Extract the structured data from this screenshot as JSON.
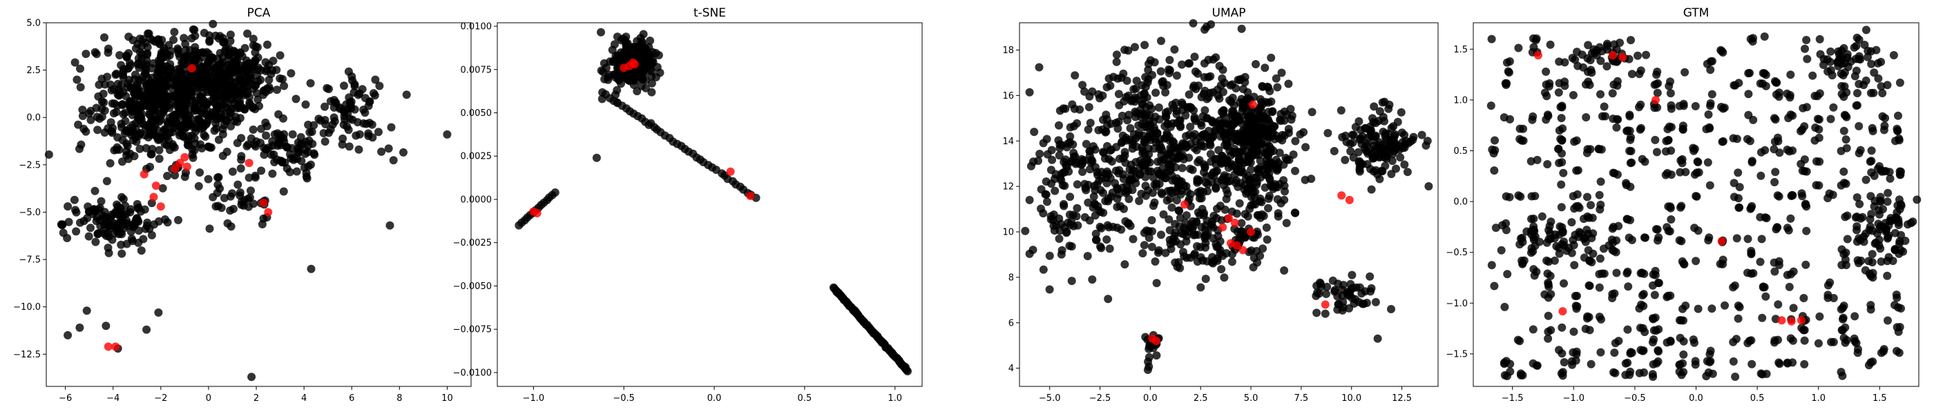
{
  "chart_data": [
    {
      "type": "scatter",
      "title": "PCA",
      "xlim": [
        -6.8,
        11.0
      ],
      "ylim": [
        -14.2,
        5.0
      ],
      "xticks": [
        -6,
        -4,
        -2,
        0,
        2,
        4,
        6,
        8,
        10
      ],
      "yticks": [
        5.0,
        2.5,
        0.0,
        -2.5,
        -5.0,
        -7.5,
        -10.0,
        -12.5
      ],
      "xtick_labels": [
        "−6",
        "−4",
        "−2",
        "0",
        "2",
        "4",
        "6",
        "8",
        "10"
      ],
      "ytick_labels": [
        "5.0",
        "2.5",
        "0.0",
        "−2.5",
        "−5.0",
        "−7.5",
        "−10.0",
        "−12.5"
      ],
      "grid": false,
      "point_color": "#000000",
      "highlight_color": "#ff0000",
      "clusters": [
        {
          "cx": -1.8,
          "cy": 1.0,
          "sx": 1.5,
          "sy": 1.6,
          "n": 700
        },
        {
          "cx": 0.8,
          "cy": 2.2,
          "sx": 1.0,
          "sy": 1.0,
          "n": 280
        },
        {
          "cx": -3.8,
          "cy": -5.6,
          "sx": 1.0,
          "sy": 0.6,
          "n": 130
        },
        {
          "cx": 3.2,
          "cy": -1.8,
          "sx": 1.0,
          "sy": 0.9,
          "n": 90
        },
        {
          "cx": 5.8,
          "cy": 0.2,
          "sx": 0.9,
          "sy": 1.1,
          "n": 80
        },
        {
          "cx": 1.2,
          "cy": -4.2,
          "sx": 0.8,
          "sy": 0.8,
          "n": 40
        }
      ],
      "points": [
        [
          -5.9,
          -11.5
        ],
        [
          -5.4,
          -11.1
        ],
        [
          -5.1,
          -10.2
        ],
        [
          -4.3,
          -11.0
        ],
        [
          -3.8,
          -12.2
        ],
        [
          -2.6,
          -11.2
        ],
        [
          -2.1,
          -10.3
        ],
        [
          1.8,
          -13.7
        ],
        [
          4.3,
          -8.0
        ],
        [
          10.0,
          -0.9
        ],
        [
          7.6,
          -5.7
        ],
        [
          8.3,
          1.2
        ]
      ],
      "highlight": [
        [
          -0.7,
          2.6
        ],
        [
          -1.2,
          -2.4
        ],
        [
          -1.0,
          -2.1
        ],
        [
          -0.9,
          -2.6
        ],
        [
          -1.4,
          -2.7
        ],
        [
          -2.3,
          -4.2
        ],
        [
          -2.0,
          -4.7
        ],
        [
          -2.2,
          -3.6
        ],
        [
          -2.7,
          -3.0
        ],
        [
          1.7,
          -2.4
        ],
        [
          2.3,
          -4.5
        ],
        [
          2.5,
          -5.0
        ],
        [
          -3.9,
          -12.1
        ],
        [
          -4.2,
          -12.1
        ]
      ]
    },
    {
      "type": "scatter",
      "title": "t-SNE",
      "xlim": [
        -1.2,
        1.15
      ],
      "ylim": [
        -0.0108,
        0.0102
      ],
      "xticks": [
        -1.0,
        -0.5,
        0.0,
        0.5,
        1.0
      ],
      "yticks": [
        0.01,
        0.0075,
        0.005,
        0.0025,
        0.0,
        -0.0025,
        -0.005,
        -0.0075,
        -0.01
      ],
      "xtick_labels": [
        "−1.0",
        "−0.5",
        "0.0",
        "0.5",
        "1.0"
      ],
      "ytick_labels": [
        "0.0100",
        "0.0075",
        "0.0050",
        "0.0025",
        "0.0000",
        "−0.0025",
        "−0.0050",
        "−0.0075",
        "−0.0100"
      ],
      "grid": false,
      "point_color": "#000000",
      "highlight_color": "#ff0000",
      "clusters": [
        {
          "cx": -0.46,
          "cy": 0.0078,
          "sx": 0.06,
          "sy": 0.0007,
          "n": 260
        }
      ],
      "segments": [
        {
          "from": [
            -0.62,
            0.0062
          ],
          "to": [
            0.23,
            0.0001
          ],
          "n": 40
        },
        {
          "from": [
            0.66,
            -0.0051
          ],
          "to": [
            1.07,
            -0.0099
          ],
          "n": 80
        },
        {
          "from": [
            -1.08,
            -0.0015
          ],
          "to": [
            -0.88,
            0.0004
          ],
          "n": 14
        }
      ],
      "points": [
        [
          -0.65,
          0.0024
        ],
        [
          -0.62,
          0.0058
        ],
        [
          -0.35,
          0.0044
        ]
      ],
      "highlight": [
        [
          -0.47,
          0.0077
        ],
        [
          -0.44,
          0.0078
        ],
        [
          -0.5,
          0.0076
        ],
        [
          -0.45,
          0.0079
        ],
        [
          0.09,
          0.0016
        ],
        [
          0.2,
          0.0002
        ],
        [
          -1.0,
          -0.0007
        ],
        [
          -0.98,
          -0.0008
        ]
      ]
    },
    {
      "type": "scatter",
      "title": "UMAP",
      "xlim": [
        -6.5,
        14.3
      ],
      "ylim": [
        3.2,
        19.2
      ],
      "xticks": [
        -5.0,
        -2.5,
        0.0,
        2.5,
        5.0,
        7.5,
        10.0,
        12.5
      ],
      "yticks": [
        18,
        16,
        14,
        12,
        10,
        8,
        6,
        4
      ],
      "xtick_labels": [
        "−5.0",
        "−2.5",
        "0.0",
        "2.5",
        "5.0",
        "7.5",
        "10.0",
        "12.5"
      ],
      "ytick_labels": [
        "18",
        "16",
        "14",
        "12",
        "10",
        "8",
        "6",
        "4"
      ],
      "grid": false,
      "point_color": "#000000",
      "highlight_color": "#ff0000",
      "clusters": [
        {
          "cx": 1.0,
          "cy": 13.5,
          "sx": 2.4,
          "sy": 2.2,
          "n": 600
        },
        {
          "cx": 5.2,
          "cy": 14.0,
          "sx": 0.9,
          "sy": 1.3,
          "n": 350
        },
        {
          "cx": -3.5,
          "cy": 12.0,
          "sx": 1.2,
          "sy": 1.6,
          "n": 150
        },
        {
          "cx": 11.3,
          "cy": 13.8,
          "sx": 1.0,
          "sy": 0.9,
          "n": 140
        },
        {
          "cx": 3.5,
          "cy": 9.6,
          "sx": 1.6,
          "sy": 0.8,
          "n": 120
        },
        {
          "cx": 9.8,
          "cy": 7.3,
          "sx": 0.9,
          "sy": 0.4,
          "n": 50
        },
        {
          "cx": 0.1,
          "cy": 4.8,
          "sx": 0.2,
          "sy": 0.4,
          "n": 18
        }
      ],
      "points": [
        [
          -6.0,
          11.4
        ],
        [
          11.3,
          5.3
        ],
        [
          8.7,
          6.4
        ],
        [
          2.7,
          18.9
        ],
        [
          13.7,
          13.8
        ]
      ],
      "highlight": [
        [
          1.7,
          11.2
        ],
        [
          3.9,
          10.6
        ],
        [
          3.6,
          10.2
        ],
        [
          4.2,
          10.4
        ],
        [
          4.3,
          9.4
        ],
        [
          4.6,
          9.2
        ],
        [
          4.0,
          9.5
        ],
        [
          5.1,
          15.6
        ],
        [
          5.0,
          10.0
        ],
        [
          9.5,
          11.6
        ],
        [
          9.9,
          11.4
        ],
        [
          8.7,
          6.8
        ],
        [
          0.3,
          5.2
        ],
        [
          0.1,
          5.3
        ]
      ]
    },
    {
      "type": "scatter",
      "title": "GTM",
      "xlim": [
        -1.82,
        1.82
      ],
      "ylim": [
        -1.82,
        1.76
      ],
      "xticks": [
        -1.5,
        -1.0,
        -0.5,
        0.0,
        0.5,
        1.0,
        1.5
      ],
      "yticks": [
        1.5,
        1.0,
        0.5,
        0.0,
        -0.5,
        -1.0,
        -1.5
      ],
      "xtick_labels": [
        "−1.5",
        "−1.0",
        "−0.5",
        "0.0",
        "0.5",
        "1.0",
        "1.5"
      ],
      "ytick_labels": [
        "1.5",
        "1.0",
        "0.5",
        "0.0",
        "−0.5",
        "−1.0",
        "−1.5"
      ],
      "grid": false,
      "point_color": "#000000",
      "highlight_color": "#ff0000",
      "grid_fill": {
        "xmin": -1.65,
        "xmax": 1.65,
        "ymin": -1.7,
        "ymax": 1.68,
        "step": 0.11,
        "prob": 0.42
      },
      "clusters": [
        {
          "cx": 1.55,
          "cy": -0.2,
          "sx": 0.12,
          "sy": 0.25,
          "n": 70
        },
        {
          "cx": -1.15,
          "cy": -0.35,
          "sx": 0.25,
          "sy": 0.12,
          "n": 60
        },
        {
          "cx": 1.25,
          "cy": 1.4,
          "sx": 0.15,
          "sy": 0.12,
          "n": 40
        },
        {
          "cx": -0.75,
          "cy": 1.45,
          "sx": 0.2,
          "sy": 0.08,
          "n": 35
        }
      ],
      "points": [
        [
          -1.55,
          -1.57
        ],
        [
          -1.67,
          1.6
        ]
      ],
      "highlight": [
        [
          -1.29,
          1.44
        ],
        [
          -0.68,
          1.44
        ],
        [
          -0.33,
          1.0
        ],
        [
          0.21,
          -0.39
        ],
        [
          -1.09,
          -1.08
        ],
        [
          0.7,
          -1.17
        ],
        [
          0.78,
          -1.18
        ],
        [
          0.86,
          -1.17
        ],
        [
          -0.6,
          1.42
        ]
      ]
    }
  ]
}
